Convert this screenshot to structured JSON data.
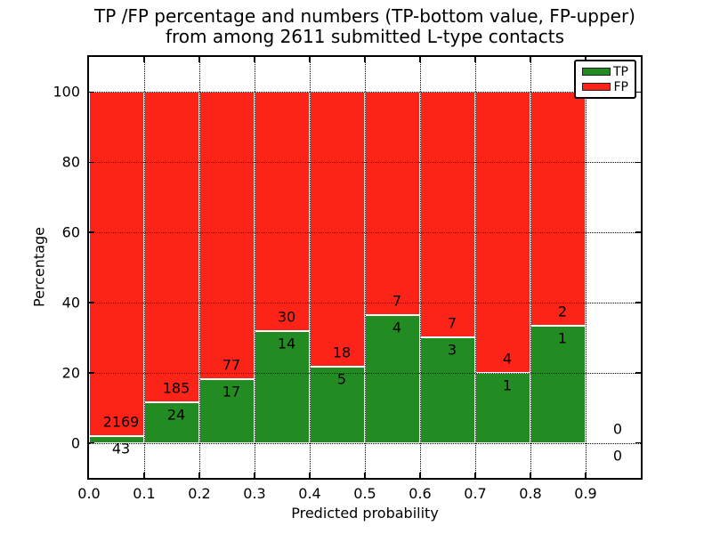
{
  "title": {
    "line1": "TP /FP percentage and numbers (TP-bottom value, FP-upper)",
    "line2": "from among 2611 submitted L-type contacts"
  },
  "axes": {
    "xlabel": "Predicted probability",
    "ylabel": "Percentage",
    "xticks": [
      "0.0",
      "0.1",
      "0.2",
      "0.3",
      "0.4",
      "0.5",
      "0.6",
      "0.7",
      "0.8",
      "0.9"
    ],
    "yticks": [
      "0",
      "20",
      "40",
      "60",
      "80",
      "100"
    ],
    "xlim": [
      0.0,
      1.0
    ],
    "ylim": [
      -10,
      110
    ],
    "grid": "dotted"
  },
  "legend": {
    "position": "upper-right",
    "items": [
      {
        "label": "TP",
        "color": "#228b22"
      },
      {
        "label": "FP",
        "color": "#fc2418"
      }
    ]
  },
  "colors": {
    "tp": "#228b22",
    "fp": "#fc2418",
    "bar_edge": "#ffffff",
    "text": "#000000"
  },
  "chart_data": {
    "type": "bar",
    "stacked": true,
    "normalized_to_percent": true,
    "title": "TP /FP percentage and numbers (TP-bottom value, FP-upper) from among 2611 submitted L-type contacts",
    "xlabel": "Predicted probability",
    "ylabel": "Percentage",
    "total_contacts": 2611,
    "bin_width": 0.1,
    "bin_starts": [
      0.0,
      0.1,
      0.2,
      0.3,
      0.4,
      0.5,
      0.6,
      0.7,
      0.8,
      0.9
    ],
    "series": [
      {
        "name": "TP",
        "counts": [
          43,
          24,
          17,
          14,
          5,
          4,
          3,
          1,
          1,
          0
        ]
      },
      {
        "name": "FP",
        "counts": [
          2169,
          185,
          77,
          30,
          18,
          7,
          7,
          4,
          2,
          0
        ]
      }
    ],
    "tp_percent_of_bin": [
      1.94,
      11.48,
      18.09,
      31.82,
      21.74,
      36.36,
      30.0,
      20.0,
      33.33,
      0
    ],
    "legend_position": "upper right",
    "grid": true
  }
}
